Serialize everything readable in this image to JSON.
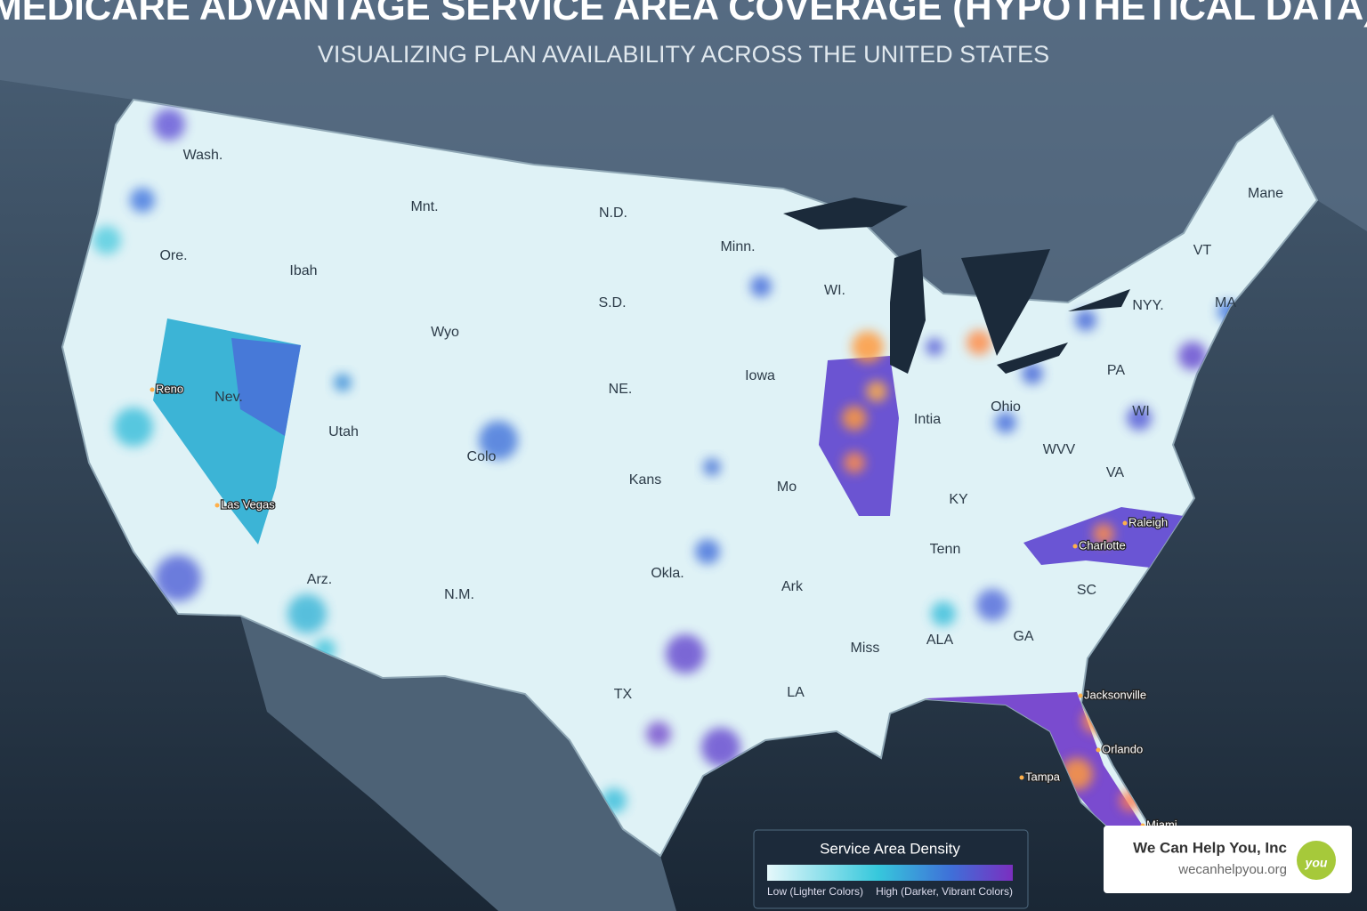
{
  "header": {
    "title": "MEDICARE ADVANTAGE SERVICE AREA COVERAGE (HYPOTHETICAL DATA)",
    "subtitle": "VISUALIZING PLAN AVAILABILITY ACROSS THE UNITED STATES"
  },
  "map": {
    "state_labels": [
      "Wash.",
      "Mnt.",
      "N.D.",
      "Minn.",
      "Mane",
      "Ore.",
      "Ibah",
      "S.D.",
      "WI.",
      "VT",
      "NYY.",
      "MA",
      "Wyo",
      "Iowa",
      "NE.",
      "PA",
      "Nev.",
      "Utah",
      "Intia",
      "Ohio",
      "WI",
      "Colo",
      "WVV",
      "Kans",
      "Mo",
      "VA",
      "KY",
      "Tenn",
      "Okla.",
      "Arz.",
      "Ark",
      "SC",
      "N.M.",
      "ALA",
      "GA",
      "Miss",
      "TX",
      "LA"
    ],
    "city_labels": [
      "Reno",
      "Las Vegas",
      "Raleigh",
      "Charlotte",
      "Jacksonville",
      "Orlando",
      "Tampa",
      "Miami"
    ]
  },
  "legend": {
    "title": "Service Area Density",
    "low_label": "Low (Lighter Colors)",
    "high_label": "High (Darker, Vibrant Colors)"
  },
  "brand": {
    "name": "We Can Help You, Inc",
    "url": "wecanhelpyou.org",
    "logo_text": "you"
  }
}
